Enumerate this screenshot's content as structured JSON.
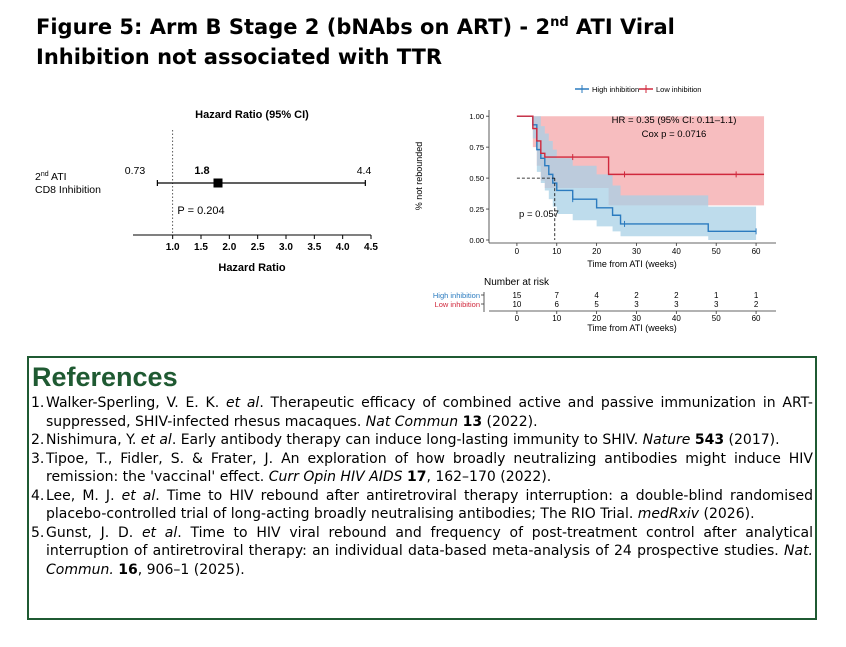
{
  "title": {
    "line1_prefix": "Figure 5: Arm B Stage 2 (bNAbs on ART) - 2",
    "line1_sup": "nd",
    "line1_suffix": " ATI Viral",
    "line2": "Inhibition not associated with TTR"
  },
  "chart_data": [
    {
      "type": "scatter",
      "title": "Hazard Ratio (95% CI)",
      "xlabel": "Hazard Ratio",
      "row_label_prefix": "2",
      "row_label_sup": "nd",
      "row_label_suffix": " ATI",
      "row_label_line2": "CD8 Inhibition",
      "point": 1.8,
      "point_label": "1.8",
      "ci_low": 0.73,
      "ci_low_label": "0.73",
      "ci_high": 4.4,
      "ci_high_label": "4.4",
      "p_label": "P = 0.204",
      "reference_line": 1.0,
      "xlim": [
        0.3,
        4.5
      ],
      "xticks": [
        "1.0",
        "1.5",
        "2.0",
        "2.5",
        "3.0",
        "3.5",
        "4.0",
        "4.5"
      ],
      "grid": false
    },
    {
      "type": "line",
      "step": true,
      "ylabel": "% not rebounded",
      "xlabel": "Time from ATI (weeks)",
      "xlim": [
        -7,
        65
      ],
      "ylim": [
        0,
        1.05
      ],
      "xticks": [
        "0",
        "10",
        "20",
        "30",
        "40",
        "50",
        "60"
      ],
      "yticks": [
        "0.00",
        "0.25",
        "0.50",
        "0.75",
        "1.00"
      ],
      "legend_position": "top-right",
      "annotation_hr": "HR = 0.35 (95% CI: 0.11–1.1)",
      "annotation_cox": "Cox p = 0.0716",
      "annotation_p": "p = 0.057",
      "median_y": 0.5,
      "median_x": 9.5,
      "series": [
        {
          "name": "High inhibition",
          "color": "#2b7bbf",
          "band_color": "#a8d0e6",
          "x": [
            0,
            4,
            5,
            6,
            7,
            8,
            9,
            10,
            14,
            20,
            24,
            26,
            48,
            60
          ],
          "y": [
            1.0,
            0.93,
            0.73,
            0.66,
            0.6,
            0.53,
            0.46,
            0.4,
            0.33,
            0.26,
            0.2,
            0.13,
            0.07,
            0.07
          ],
          "lower": [
            1.0,
            0.82,
            0.55,
            0.46,
            0.4,
            0.33,
            0.27,
            0.21,
            0.16,
            0.11,
            0.07,
            0.03,
            0.0,
            0.0
          ],
          "upper": [
            1.0,
            1.0,
            1.0,
            0.92,
            0.86,
            0.8,
            0.73,
            0.66,
            0.6,
            0.53,
            0.44,
            0.36,
            0.27,
            0.27
          ],
          "censor_x": [
            14,
            27,
            60
          ]
        },
        {
          "name": "Low inhibition",
          "color": "#d0283c",
          "band_color": "#f4a7a9",
          "x": [
            0,
            4,
            5,
            6,
            7,
            23,
            62
          ],
          "y": [
            1.0,
            0.9,
            0.8,
            0.7,
            0.67,
            0.53,
            0.53
          ],
          "lower": [
            1.0,
            0.75,
            0.6,
            0.48,
            0.42,
            0.28,
            0.28
          ],
          "upper": [
            1.0,
            1.0,
            1.0,
            1.0,
            1.0,
            1.0,
            1.0
          ],
          "censor_x": [
            14,
            27,
            55
          ]
        }
      ],
      "risk_table": {
        "title": "Number at risk",
        "xlabel": "Time from ATI (weeks)",
        "times": [
          "0",
          "10",
          "20",
          "30",
          "40",
          "50",
          "60"
        ],
        "rows": [
          {
            "label": "High inhibition",
            "color": "#2b7bbf",
            "values": [
              "15",
              "7",
              "4",
              "2",
              "2",
              "1",
              "1"
            ]
          },
          {
            "label": "Low inhibition",
            "color": "#d0283c",
            "values": [
              "10",
              "6",
              "5",
              "3",
              "3",
              "3",
              "2"
            ]
          }
        ]
      }
    }
  ],
  "references": {
    "heading": "References",
    "items": [
      {
        "num": "1.",
        "pre": "Walker-Sperling, V. E. K. ",
        "etal": "et al",
        "mid": ". Therapeutic efficacy of combined active and passive immunization in ART-suppressed, SHIV-infected rhesus macaques. ",
        "journal": "Nat Commun",
        "gap": " ",
        "vol": "13",
        "post": " (2022)."
      },
      {
        "num": "2.",
        "pre": "Nishimura, Y. ",
        "etal": "et al",
        "mid": ". Early antibody therapy can induce long-lasting immunity to SHIV. ",
        "journal": "Nature",
        "gap": " ",
        "vol": "543",
        "post": " (2017)."
      },
      {
        "num": "3.",
        "pre": "Tipoe, T., Fidler, S. & Frater, J. An exploration of how broadly neutralizing antibodies might induce HIV remission: the 'vaccinal' effect. ",
        "etal": "",
        "mid": "",
        "journal": "Curr Opin HIV AIDS",
        "gap": " ",
        "vol": "17",
        "post": ", 162–170 (2022)."
      },
      {
        "num": "4.",
        "pre": "Lee, M. J. ",
        "etal": "et al",
        "mid": ". Time to HIV rebound after antiretroviral therapy interruption: a double-blind randomised placebo-controlled trial of long-acting broadly neutralising antibodies; The RIO Trial. ",
        "journal": "medRxiv",
        "gap": "",
        "vol": "",
        "post": " (2026)."
      },
      {
        "num": "5.",
        "pre": "Gunst, J. D. ",
        "etal": "et al",
        "mid": ". Time to HIV viral rebound and frequency of post-treatment control after analytical interruption of antiretroviral therapy: an individual data-based meta-analysis of 24 prospective studies. ",
        "journal": "Nat. Commun.",
        "gap": " ",
        "vol": "16",
        "post": ", 906–1 (2025)."
      }
    ]
  }
}
